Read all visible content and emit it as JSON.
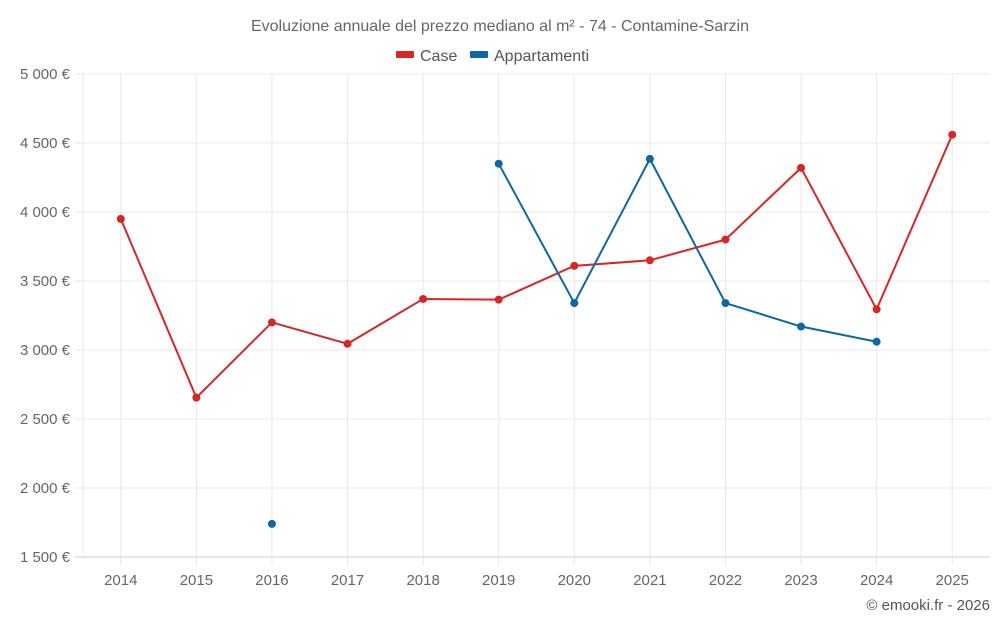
{
  "chart_data": {
    "type": "line",
    "title": "Evoluzione annuale del prezzo mediano al m² - 74 - Contamine-Sarzin",
    "xlabel": "",
    "ylabel": "",
    "x": [
      "2014",
      "2015",
      "2016",
      "2017",
      "2018",
      "2019",
      "2020",
      "2021",
      "2022",
      "2023",
      "2024",
      "2025"
    ],
    "ylim": [
      1500,
      5000
    ],
    "yticks": [
      1500,
      2000,
      2500,
      3000,
      3500,
      4000,
      4500,
      5000
    ],
    "ytick_labels": [
      "1 500 €",
      "2 000 €",
      "2 500 €",
      "3 000 €",
      "3 500 €",
      "4 000 €",
      "4 500 €",
      "5 000 €"
    ],
    "grid": true,
    "legend_position": "top-center",
    "series": [
      {
        "name": "Case",
        "color": "#d62728",
        "values": [
          3950,
          2655,
          3200,
          3045,
          3370,
          3365,
          3610,
          3650,
          3800,
          4320,
          3295,
          4560
        ]
      },
      {
        "name": "Appartamenti",
        "color": "#0e67a0",
        "values": [
          null,
          null,
          1740,
          null,
          null,
          4350,
          3340,
          4385,
          3340,
          3170,
          3060,
          null
        ]
      }
    ]
  },
  "credit": "© emooki.fr - 2026"
}
